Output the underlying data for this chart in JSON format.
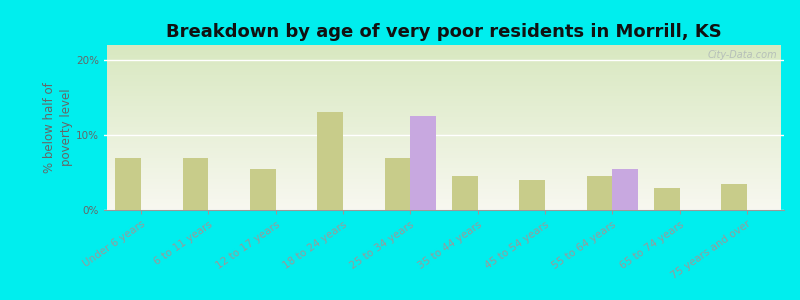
{
  "title": "Breakdown by age of very poor residents in Morrill, KS",
  "ylabel": "% below half of\npoverty level",
  "categories": [
    "Under 6 years",
    "6 to 11 years",
    "12 to 17 years",
    "18 to 24 years",
    "25 to 34 years",
    "35 to 44 years",
    "45 to 54 years",
    "55 to 64 years",
    "65 to 74 years",
    "75 years and over"
  ],
  "kansas_values": [
    7.0,
    7.0,
    5.5,
    13.0,
    7.0,
    4.5,
    4.0,
    4.5,
    3.0,
    3.5
  ],
  "morrill_values": [
    0,
    0,
    0,
    0,
    12.5,
    0,
    0,
    5.5,
    0,
    0
  ],
  "kansas_color": "#c8cc8a",
  "morrill_color": "#c8a8e0",
  "background_color": "#00eeee",
  "grad_top": "#d8e8c0",
  "grad_bottom": "#f8f8f0",
  "ylim": [
    0,
    22
  ],
  "yticks": [
    0,
    10,
    20
  ],
  "ytick_labels": [
    "0%",
    "10%",
    "20%"
  ],
  "bar_width": 0.38,
  "title_fontsize": 13,
  "axis_label_fontsize": 8.5,
  "tick_fontsize": 7.5,
  "legend_fontsize": 9,
  "watermark": "City-Data.com"
}
